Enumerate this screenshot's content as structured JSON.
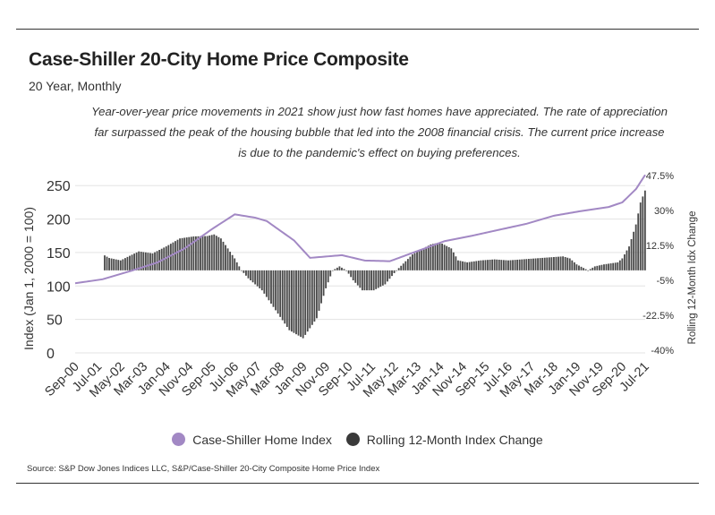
{
  "title": "Case-Shiller 20-City Home Price Composite",
  "subtitle": "20 Year, Monthly",
  "annotation": "Year-over-year price movements in 2021 show just how fast homes have appreciated. The rate of appreciation far surpassed the peak of the housing bubble that led into the 2008 financial crisis. The current price increase is due to the pandemic's effect on buying preferences.",
  "source": "Source:  S&P Dow Jones Indices LLC, S&P/Case-Shiller 20-City Composite Home Price Index",
  "legend": {
    "line_label": "Case-Shiller Home Index",
    "bar_label": "Rolling 12-Month Index Change"
  },
  "colors": {
    "line": "#a288c4",
    "bars": "#4a4a4a",
    "grid": "#e3e3e3",
    "text": "#333333"
  },
  "chart_data": {
    "type": "bar+line",
    "x_tick_labels": [
      "Sep-00",
      "Jul-01",
      "May-02",
      "Mar-03",
      "Jan-04",
      "Nov-04",
      "Sep-05",
      "Jul-06",
      "May-07",
      "Mar-08",
      "Jan-09",
      "Nov-09",
      "Sep-10",
      "Jul-11",
      "May-12",
      "Mar-13",
      "Jan-14",
      "Nov-14",
      "Sep-15",
      "Jul-16",
      "May-17",
      "Mar-18",
      "Jan-19",
      "Nov-19",
      "Sep-20",
      "Jul-21"
    ],
    "x_range": [
      "Sep-00",
      "Jul-21"
    ],
    "y_left": {
      "label": "Index (Jan 1, 2000 = 100)",
      "ticks": [
        0,
        50,
        100,
        150,
        200,
        250
      ],
      "range": [
        0,
        265
      ]
    },
    "y_right": {
      "label": "Rolling 12-Month Idx Change",
      "ticks": [
        "-40%",
        "-22.5%",
        "-5%",
        "12.5%",
        "30%",
        "47.5%"
      ],
      "range": [
        -40,
        47.5
      ]
    },
    "grid": true,
    "legend_position": "bottom",
    "series": [
      {
        "name": "Case-Shiller Home Index",
        "axis": "left",
        "type": "line",
        "anchors": [
          [
            "Sep-00",
            104
          ],
          [
            "Sep-01",
            110
          ],
          [
            "Sep-02",
            122
          ],
          [
            "Sep-03",
            135
          ],
          [
            "Sep-04",
            156
          ],
          [
            "Sep-05",
            185
          ],
          [
            "Jul-06",
            207
          ],
          [
            "Apr-07",
            202
          ],
          [
            "Sep-07",
            197
          ],
          [
            "Sep-08",
            168
          ],
          [
            "Apr-09",
            142
          ],
          [
            "Jun-10",
            146
          ],
          [
            "Apr-11",
            138
          ],
          [
            "Mar-12",
            137
          ],
          [
            "Mar-13",
            152
          ],
          [
            "Mar-14",
            167
          ],
          [
            "Mar-15",
            175
          ],
          [
            "Mar-16",
            184
          ],
          [
            "Mar-17",
            193
          ],
          [
            "Mar-18",
            205
          ],
          [
            "Mar-19",
            212
          ],
          [
            "Mar-20",
            218
          ],
          [
            "Sep-20",
            225
          ],
          [
            "Mar-21",
            245
          ],
          [
            "Jul-21",
            266
          ]
        ]
      },
      {
        "name": "Rolling 12-Month Index Change",
        "axis": "right",
        "type": "bar",
        "unit": "%",
        "anchors": [
          [
            "Oct-01",
            7.5
          ],
          [
            "Dec-01",
            6.2
          ],
          [
            "May-02",
            5.0
          ],
          [
            "Sep-02",
            7.3
          ],
          [
            "Jan-03",
            9.5
          ],
          [
            "Jul-03",
            8.5
          ],
          [
            "Jan-04",
            12.0
          ],
          [
            "Jul-04",
            16.0
          ],
          [
            "Jan-05",
            17.0
          ],
          [
            "Jul-05",
            17.2
          ],
          [
            "Oct-05",
            18.0
          ],
          [
            "Jan-06",
            16.0
          ],
          [
            "Jul-06",
            6.0
          ],
          [
            "Oct-06",
            0.0
          ],
          [
            "Jan-07",
            -4.0
          ],
          [
            "Jul-07",
            -10.0
          ],
          [
            "Jan-08",
            -20.0
          ],
          [
            "Jul-08",
            -30.0
          ],
          [
            "Jan-09",
            -34.0
          ],
          [
            "Jul-09",
            -24.0
          ],
          [
            "Nov-09",
            -9.0
          ],
          [
            "Feb-10",
            0.0
          ],
          [
            "May-10",
            2.0
          ],
          [
            "Aug-10",
            0.0
          ],
          [
            "Nov-10",
            -5.0
          ],
          [
            "Mar-11",
            -10.0
          ],
          [
            "Aug-11",
            -10.0
          ],
          [
            "Jan-12",
            -7.0
          ],
          [
            "Jun-12",
            0.0
          ],
          [
            "Jan-13",
            8.0
          ],
          [
            "Sep-13",
            13.0
          ],
          [
            "Jan-14",
            14.0
          ],
          [
            "Jun-14",
            11.0
          ],
          [
            "Sep-14",
            5.0
          ],
          [
            "Jan-15",
            4.0
          ],
          [
            "Jul-15",
            5.0
          ],
          [
            "Jan-16",
            5.5
          ],
          [
            "Jul-16",
            5.0
          ],
          [
            "Jan-17",
            5.5
          ],
          [
            "Jul-17",
            6.0
          ],
          [
            "Jan-18",
            6.5
          ],
          [
            "Jul-18",
            7.0
          ],
          [
            "Oct-18",
            6.0
          ],
          [
            "Jan-19",
            3.0
          ],
          [
            "Jun-19",
            0.0
          ],
          [
            "Sep-19",
            2.0
          ],
          [
            "Jan-20",
            3.0
          ],
          [
            "Jul-20",
            4.0
          ],
          [
            "Sep-20",
            6.0
          ],
          [
            "Dec-20",
            12.0
          ],
          [
            "Mar-21",
            23.0
          ],
          [
            "May-21",
            34.0
          ],
          [
            "Jul-21",
            40.0
          ]
        ]
      }
    ]
  }
}
